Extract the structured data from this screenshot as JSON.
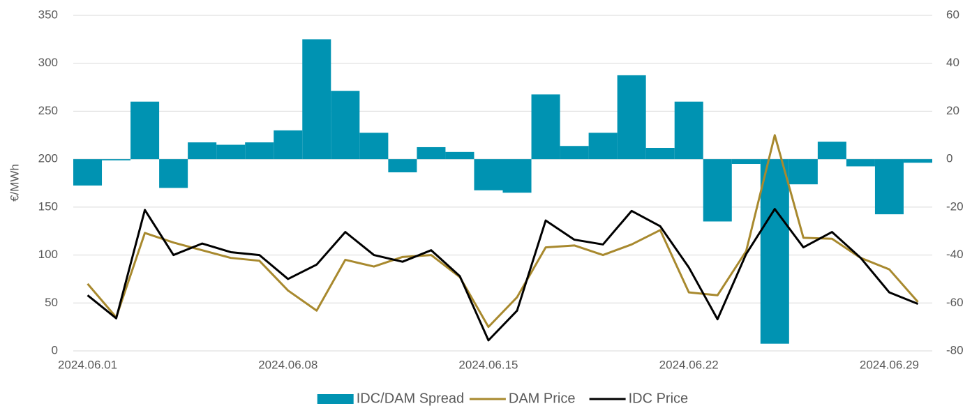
{
  "chart_data": {
    "type": "combo",
    "y_label": "€/MWh",
    "categories": [
      "2024.06.01",
      null,
      null,
      null,
      null,
      null,
      null,
      "2024.06.08",
      null,
      null,
      null,
      null,
      null,
      null,
      "2024.06.15",
      null,
      null,
      null,
      null,
      null,
      null,
      "2024.06.22",
      null,
      null,
      null,
      null,
      null,
      null,
      "2024.06.29",
      null
    ],
    "ylim": [
      0,
      350
    ],
    "yticks": [
      0,
      50,
      100,
      150,
      200,
      250,
      300,
      350
    ],
    "y2lim": [
      -80,
      60
    ],
    "y2ticks": [
      -80,
      -60,
      -40,
      -20,
      0,
      20,
      40,
      60
    ],
    "grid": true,
    "legend": "bottom",
    "series": [
      {
        "name": "IDC/DAM Spread",
        "type": "bar",
        "axis": "y2",
        "color": "#0093b2",
        "values": [
          -11,
          -0.5,
          24,
          -12,
          7,
          6,
          7,
          12,
          50,
          28.5,
          11,
          -5.5,
          5,
          3,
          -13,
          -14,
          27,
          5.5,
          11,
          35,
          4.7,
          24,
          -26,
          -2,
          -77,
          -10.5,
          7.3,
          -3,
          -23,
          -1.5
        ]
      },
      {
        "name": "DAM Price",
        "type": "line",
        "color": "#a8892e",
        "values": [
          70,
          35,
          123,
          113,
          105,
          97,
          94,
          63,
          42,
          95,
          88,
          98,
          100,
          77,
          25,
          56,
          108,
          110,
          100,
          111,
          126,
          61,
          58,
          104,
          225,
          118,
          117,
          97,
          85,
          51
        ]
      },
      {
        "name": "IDC Price",
        "type": "line",
        "color": "#000000",
        "values": [
          58,
          34,
          147,
          100,
          112,
          103,
          100,
          75,
          90,
          124,
          100,
          93,
          105,
          78,
          11,
          42,
          136,
          116,
          111,
          146,
          130,
          87,
          33,
          101,
          148,
          108,
          124,
          97,
          61,
          49
        ]
      }
    ]
  }
}
